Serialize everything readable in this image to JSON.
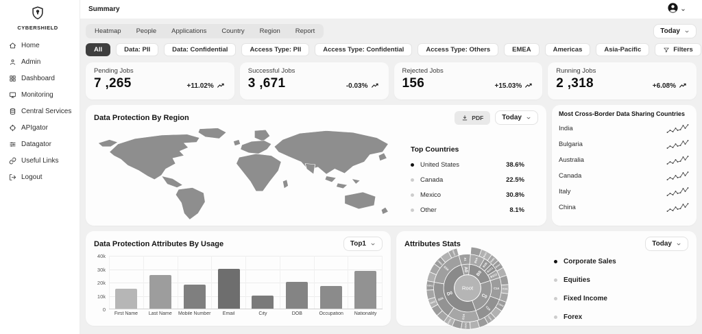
{
  "brand": {
    "name": "CYBERSHIELD"
  },
  "header": {
    "title": "Summary"
  },
  "sidebar": {
    "items": [
      {
        "label": "Home",
        "icon": "home"
      },
      {
        "label": "Admin",
        "icon": "user"
      },
      {
        "label": "Dashboard",
        "icon": "dashboard"
      },
      {
        "label": "Monitoring",
        "icon": "monitor"
      },
      {
        "label": "Central Services",
        "icon": "database"
      },
      {
        "label": "APIgator",
        "icon": "crosshair"
      },
      {
        "label": "Datagator",
        "icon": "sliders"
      },
      {
        "label": "Useful Links",
        "icon": "link"
      },
      {
        "label": "Logout",
        "icon": "logout"
      }
    ]
  },
  "toolbar": {
    "tabs": [
      "Heatmap",
      "People",
      "Applications",
      "Country",
      "Region",
      "Report"
    ],
    "date_filter": "Today",
    "chips": [
      {
        "label": "All",
        "active": true
      },
      {
        "label": "Data: PII",
        "active": false
      },
      {
        "label": "Data: Confidential",
        "active": false
      },
      {
        "label": "Access Type: PII",
        "active": false
      },
      {
        "label": "Access Type: Confidential",
        "active": false
      },
      {
        "label": "Access Type: Others",
        "active": false
      },
      {
        "label": "EMEA",
        "active": false
      },
      {
        "label": "Americas",
        "active": false
      },
      {
        "label": "Asia-Pacific",
        "active": false
      }
    ],
    "filters_button": "Filters"
  },
  "stats": [
    {
      "label": "Pending Jobs",
      "value": "7 ,265",
      "delta": "+11.02%",
      "trend": "up"
    },
    {
      "label": "Successful Jobs",
      "value": "3 ,671",
      "delta": "-0.03%",
      "trend": "up"
    },
    {
      "label": "Rejected Jobs",
      "value": "156",
      "delta": "+15.03%",
      "trend": "up"
    },
    {
      "label": "Running Jobs",
      "value": "2 ,318",
      "delta": "+6.08%",
      "trend": "up"
    }
  ],
  "map_card": {
    "title": "Data Protection By Region",
    "pdf_label": "PDF",
    "date_filter": "Today",
    "map_color": "#8e8e8e",
    "top_countries": {
      "title": "Top Countries",
      "items": [
        {
          "name": "United States",
          "value": "38.6%",
          "highlight": true
        },
        {
          "name": "Canada",
          "value": "22.5%",
          "highlight": false
        },
        {
          "name": "Mexico",
          "value": "30.8%",
          "highlight": false
        },
        {
          "name": "Other",
          "value": "8.1%",
          "highlight": false
        }
      ]
    }
  },
  "cross_border": {
    "title": "Most Cross-Border Data Sharing Countries",
    "countries": [
      "India",
      "Bulgaria",
      "Australia",
      "Canada",
      "Italy",
      "China"
    ],
    "sparkline_points": [
      [
        0,
        12
      ],
      [
        4,
        9
      ],
      [
        8,
        11
      ],
      [
        12,
        6
      ],
      [
        15,
        9
      ],
      [
        19,
        8
      ],
      [
        23,
        2
      ],
      [
        26,
        6
      ],
      [
        30,
        1
      ]
    ]
  },
  "bar_card": {
    "top_filter": "Top1"
  },
  "attributes_stats": {
    "title": "Attributes Stats",
    "date_filter": "Today",
    "legend": [
      {
        "label": "Corporate Sales",
        "highlight": true
      },
      {
        "label": "Equities",
        "highlight": false
      },
      {
        "label": "Fixed Income",
        "highlight": false
      },
      {
        "label": "Forex",
        "highlight": false
      }
    ]
  },
  "chart_data": [
    {
      "type": "bar",
      "title": "Data Protection Attributes By Usage",
      "categories": [
        "First Name",
        "Last Name",
        "Mobile Number",
        "Email",
        "City",
        "DOB",
        "Occupation",
        "Nationality"
      ],
      "values": [
        15000,
        25000,
        18000,
        30000,
        10000,
        20000,
        17000,
        28000
      ],
      "bar_colors": [
        "#b6b6b6",
        "#9d9d9d",
        "#7f7f7f",
        "#6e6e6e",
        "#7a7a7a",
        "#848484",
        "#8b8b8b",
        "#929292"
      ],
      "xlabel": "",
      "ylabel": "",
      "ylim": [
        0,
        40000
      ],
      "yticks": [
        {
          "v": 0,
          "label": "0"
        },
        {
          "v": 10000,
          "label": "10k"
        },
        {
          "v": 20000,
          "label": "20k"
        },
        {
          "v": 30000,
          "label": "30k"
        },
        {
          "v": 40000,
          "label": "40k"
        }
      ],
      "grid": true,
      "legend_position": "none"
    },
    {
      "type": "sunburst",
      "title": "Attributes Stats",
      "center_label": "Root",
      "center_color": "#b5b5b5",
      "rings": [
        [
          {
            "label": "A0",
            "start": 85,
            "end": 105,
            "color": "#a3a3a3"
          },
          {
            "label": "B0",
            "start": 18,
            "end": 85,
            "color": "#8f8f8f"
          },
          {
            "label": "C0",
            "start": 290,
            "end": 378,
            "color": "#999999"
          },
          {
            "label": "D0",
            "start": 105,
            "end": 290,
            "color": "#8a8a8a"
          }
        ],
        [
          {
            "label": "A1",
            "start": 85,
            "end": 105,
            "color": "#9e9e9e"
          },
          {
            "label": "B1A",
            "start": 60,
            "end": 85,
            "color": "#a8a8a8"
          },
          {
            "label": "B1B",
            "start": 45,
            "end": 60,
            "color": "#979797"
          },
          {
            "label": "B1C1",
            "start": 32,
            "end": 45,
            "color": "#8d8d8d"
          },
          {
            "label": "B1C2",
            "start": 18,
            "end": 32,
            "color": "#a3a3a3"
          },
          {
            "label": "C1A",
            "start": 340,
            "end": 378,
            "color": "#9c9c9c"
          },
          {
            "label": "C2A",
            "start": 290,
            "end": 340,
            "color": "#919191"
          },
          {
            "label": "D1A",
            "start": 235,
            "end": 290,
            "color": "#a6a6a6"
          },
          {
            "label": "D2A",
            "start": 170,
            "end": 235,
            "color": "#939393"
          },
          {
            "label": "D3A",
            "start": 105,
            "end": 170,
            "color": "#9f9f9f"
          }
        ],
        [
          {
            "label": "",
            "start": 18,
            "end": 30,
            "color": "#b1b1b1"
          },
          {
            "label": "B1C2",
            "start": 30,
            "end": 42,
            "color": "#9b9b9b"
          },
          {
            "label": "B1B1",
            "start": 42,
            "end": 54,
            "color": "#a5a5a5"
          },
          {
            "label": "B1A1",
            "start": 54,
            "end": 70,
            "color": "#b1b1b1"
          },
          {
            "label": "",
            "start": 70,
            "end": 85,
            "color": "#9b9b9b"
          },
          {
            "label": "D3A1",
            "start": 105,
            "end": 118,
            "color": "#a5a5a5"
          },
          {
            "label": "",
            "start": 118,
            "end": 131,
            "color": "#b1b1b1"
          },
          {
            "label": "D3A2",
            "start": 131,
            "end": 144,
            "color": "#9b9b9b"
          },
          {
            "label": "",
            "start": 144,
            "end": 157,
            "color": "#a5a5a5"
          },
          {
            "label": "",
            "start": 157,
            "end": 170,
            "color": "#b1b1b1"
          },
          {
            "label": "D2A1",
            "start": 170,
            "end": 183,
            "color": "#9b9b9b"
          },
          {
            "label": "",
            "start": 183,
            "end": 196,
            "color": "#a5a5a5"
          },
          {
            "label": "D2A2",
            "start": 196,
            "end": 209,
            "color": "#b1b1b1"
          },
          {
            "label": "",
            "start": 209,
            "end": 222,
            "color": "#9b9b9b"
          },
          {
            "label": "",
            "start": 222,
            "end": 235,
            "color": "#a5a5a5"
          },
          {
            "label": "D1A1",
            "start": 235,
            "end": 248,
            "color": "#b1b1b1"
          },
          {
            "label": "",
            "start": 248,
            "end": 261,
            "color": "#9b9b9b"
          },
          {
            "label": "D1A2",
            "start": 261,
            "end": 274,
            "color": "#a5a5a5"
          },
          {
            "label": "",
            "start": 274,
            "end": 287,
            "color": "#b1b1b1"
          },
          {
            "label": "",
            "start": 287,
            "end": 300,
            "color": "#9b9b9b"
          },
          {
            "label": "C2A1",
            "start": 300,
            "end": 313,
            "color": "#a5a5a5"
          },
          {
            "label": "",
            "start": 313,
            "end": 326,
            "color": "#b1b1b1"
          },
          {
            "label": "C2A2",
            "start": 326,
            "end": 340,
            "color": "#9b9b9b"
          },
          {
            "label": "",
            "start": 340,
            "end": 352,
            "color": "#a5a5a5"
          },
          {
            "label": "C1A1",
            "start": 352,
            "end": 365,
            "color": "#b1b1b1"
          },
          {
            "label": "",
            "start": 365,
            "end": 378,
            "color": "#9b9b9b"
          }
        ]
      ],
      "legend": [
        "Corporate Sales",
        "Equities",
        "Fixed Income",
        "Forex"
      ]
    }
  ]
}
